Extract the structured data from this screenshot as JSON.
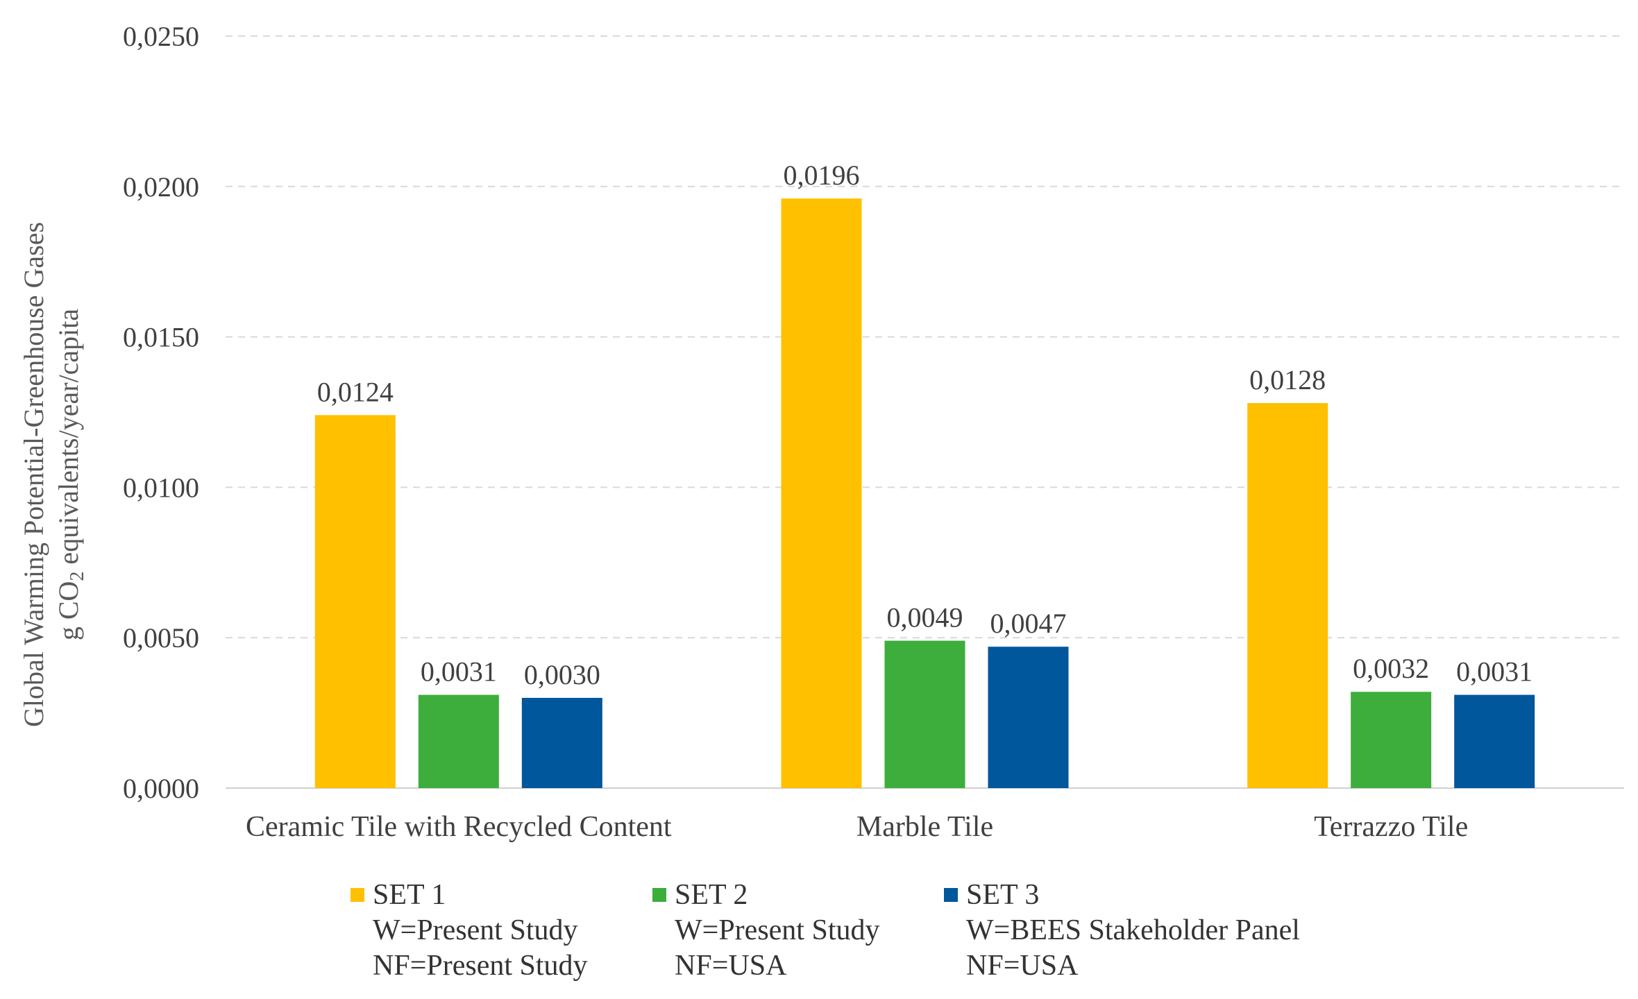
{
  "chart_data": {
    "type": "bar",
    "categories": [
      "Ceramic Tile with Recycled Content",
      "Marble Tile",
      "Terrazzo Tile"
    ],
    "series": [
      {
        "name": "SET 1",
        "values": [
          0.0124,
          0.0196,
          0.0128
        ],
        "labels": [
          "0,0124",
          "0,0196",
          "0,0128"
        ],
        "color": "#FFC000"
      },
      {
        "name": "SET 2",
        "values": [
          0.0031,
          0.0049,
          0.0032
        ],
        "labels": [
          "0,0031",
          "0,0049",
          "0,0032"
        ],
        "color": "#3DAE3B"
      },
      {
        "name": "SET 3",
        "values": [
          0.003,
          0.0047,
          0.0031
        ],
        "labels": [
          "0,0030",
          "0,0047",
          "0,0031"
        ],
        "color": "#00579C"
      }
    ],
    "ylabel": "Global Warming Potential-Greenhouse Gases",
    "ylabel_line2_pre": "g CO",
    "ylabel_line2_sub": "2",
    "ylabel_line2_post": " equivalents/year/capita",
    "ylim": [
      0,
      0.025
    ],
    "yticks": [
      0,
      0.005,
      0.01,
      0.015,
      0.02,
      0.025
    ],
    "ytick_labels": [
      "0,0000",
      "0,0050",
      "0,0100",
      "0,0150",
      "0,0200",
      "0,0250"
    ],
    "grid": true,
    "legend_position": "bottom"
  },
  "legend": [
    {
      "name": "SET 1",
      "line1": "W=Present Study",
      "line2": "NF=Present Study",
      "color": "#FFC000"
    },
    {
      "name": "SET 2",
      "line1": "W=Present Study",
      "line2": "NF=USA",
      "color": "#3DAE3B"
    },
    {
      "name": "SET 3",
      "line1": "W=BEES Stakeholder Panel",
      "line2": "NF=USA",
      "color": "#00579C"
    }
  ]
}
